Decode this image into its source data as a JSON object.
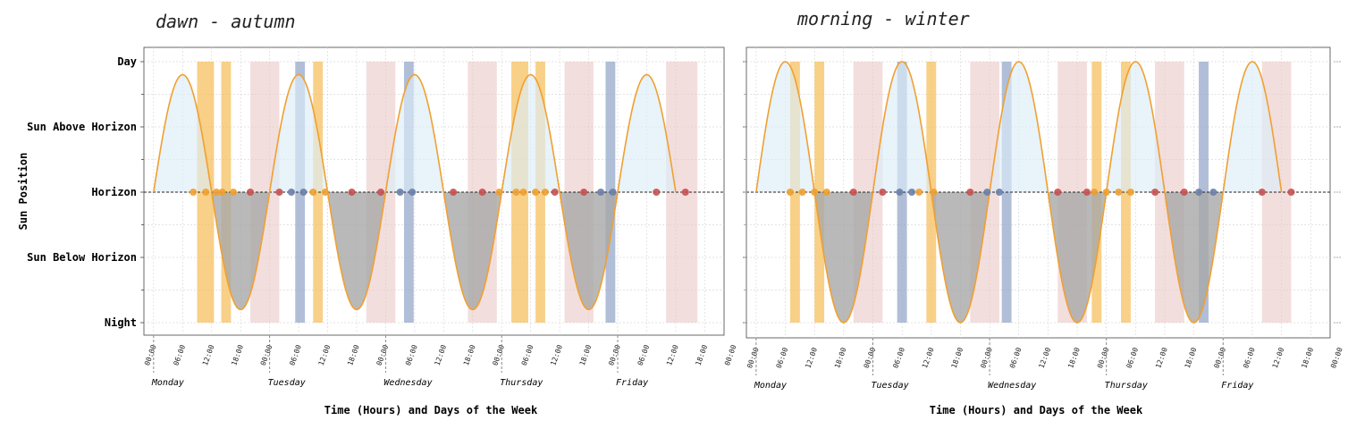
{
  "y_axis_title": "Sun Position",
  "x_axis_title": "Time (Hours) and Days of the Week",
  "colors": {
    "curve": "#f0a030",
    "above_fill": "#dcedf7",
    "below_fill": "#a8a8a8",
    "orange_band": "#f5c060",
    "pink_band": "#ebc8c8",
    "blue_band": "#8ea2c6",
    "orange_dot": "#f0a030",
    "red_dot": "#c85050",
    "blue_dot": "#6a7fa8"
  },
  "chart_data": [
    {
      "type": "line",
      "title": "dawn - autumn",
      "xlabel": "Time (Hours) and Days of the Week",
      "ylabel": "Sun Position",
      "y_levels": [
        "Night",
        "Sun Below Horizon",
        "Horizon",
        "Sun Above Horizon",
        "Day"
      ],
      "y_range": [
        -2,
        2
      ],
      "x_range_hours": [
        -2,
        118
      ],
      "x_ticks": [
        "00:00",
        "06:00",
        "12:00",
        "18:00",
        "00:00",
        "06:00",
        "12:00",
        "18:00",
        "00:00",
        "06:00",
        "12:00",
        "18:00",
        "00:00",
        "06:00",
        "12:00",
        "18:00",
        "00:00",
        "06:00",
        "12:00",
        "18:00",
        "00:00"
      ],
      "days": [
        "Monday",
        "Tuesday",
        "Wednesday",
        "Thursday",
        "Friday"
      ],
      "grid": true,
      "series": [
        {
          "kind": "sun-curve",
          "amplitude": 1.8,
          "period_hours": 24,
          "start_hour": 0,
          "end_hour": 108
        }
      ],
      "bands": [
        {
          "kind": "orange",
          "start": 9.0,
          "end": 12.5
        },
        {
          "kind": "orange",
          "start": 14.0,
          "end": 16.0
        },
        {
          "kind": "pink",
          "start": 20.0,
          "end": 26.0
        },
        {
          "kind": "blue",
          "start": 29.3,
          "end": 31.3
        },
        {
          "kind": "orange",
          "start": 33.0,
          "end": 35.0
        },
        {
          "kind": "pink",
          "start": 44.0,
          "end": 50.0
        },
        {
          "kind": "blue",
          "start": 51.8,
          "end": 53.8
        },
        {
          "kind": "pink",
          "start": 65.0,
          "end": 71.0
        },
        {
          "kind": "orange",
          "start": 74.0,
          "end": 77.5
        },
        {
          "kind": "orange",
          "start": 79.0,
          "end": 81.0
        },
        {
          "kind": "pink",
          "start": 85.0,
          "end": 91.0
        },
        {
          "kind": "blue",
          "start": 93.5,
          "end": 95.5
        },
        {
          "kind": "pink",
          "start": 106.0,
          "end": 112.5
        }
      ],
      "points": [
        {
          "kind": "orange",
          "x": 8.2
        },
        {
          "kind": "orange",
          "x": 10.8
        },
        {
          "kind": "orange",
          "x": 13.0
        },
        {
          "kind": "orange",
          "x": 14.2
        },
        {
          "kind": "orange",
          "x": 16.5
        },
        {
          "kind": "red",
          "x": 20.0
        },
        {
          "kind": "red",
          "x": 26.0
        },
        {
          "kind": "blue",
          "x": 28.5
        },
        {
          "kind": "blue",
          "x": 31.0
        },
        {
          "kind": "orange",
          "x": 33.0
        },
        {
          "kind": "orange",
          "x": 35.5
        },
        {
          "kind": "red",
          "x": 41.0
        },
        {
          "kind": "red",
          "x": 47.0
        },
        {
          "kind": "blue",
          "x": 51.0
        },
        {
          "kind": "blue",
          "x": 53.5
        },
        {
          "kind": "red",
          "x": 62.0
        },
        {
          "kind": "red",
          "x": 68.0
        },
        {
          "kind": "orange",
          "x": 71.5
        },
        {
          "kind": "orange",
          "x": 75.0
        },
        {
          "kind": "orange",
          "x": 76.5
        },
        {
          "kind": "orange",
          "x": 79.0
        },
        {
          "kind": "orange",
          "x": 81.0
        },
        {
          "kind": "red",
          "x": 83.0
        },
        {
          "kind": "red",
          "x": 89.0
        },
        {
          "kind": "blue",
          "x": 92.5
        },
        {
          "kind": "blue",
          "x": 95.0
        },
        {
          "kind": "red",
          "x": 104.0
        },
        {
          "kind": "red",
          "x": 110.0
        }
      ]
    },
    {
      "type": "line",
      "title": "morning - winter",
      "xlabel": "Time (Hours) and Days of the Week",
      "ylabel": "",
      "y_levels": [
        "Night",
        "Sun Below Horizon",
        "Horizon",
        "Sun Above Horizon",
        "Day"
      ],
      "y_range": [
        -2,
        2
      ],
      "x_range_hours": [
        -2,
        118
      ],
      "x_ticks": [
        "00:00",
        "06:00",
        "12:00",
        "18:00",
        "00:00",
        "06:00",
        "12:00",
        "18:00",
        "00:00",
        "06:00",
        "12:00",
        "18:00",
        "00:00",
        "06:00",
        "12:00",
        "18:00",
        "00:00",
        "06:00",
        "12:00",
        "18:00",
        "00:00"
      ],
      "days": [
        "Monday",
        "Tuesday",
        "Wednesday",
        "Thursday",
        "Friday"
      ],
      "grid": true,
      "series": [
        {
          "kind": "sun-curve",
          "amplitude": 2.0,
          "period_hours": 24,
          "start_hour": 0,
          "end_hour": 108
        }
      ],
      "bands": [
        {
          "kind": "orange",
          "start": 7.0,
          "end": 9.0
        },
        {
          "kind": "orange",
          "start": 12.0,
          "end": 14.0
        },
        {
          "kind": "pink",
          "start": 20.0,
          "end": 26.0
        },
        {
          "kind": "blue",
          "start": 29.0,
          "end": 31.0
        },
        {
          "kind": "orange",
          "start": 35.0,
          "end": 37.0
        },
        {
          "kind": "pink",
          "start": 44.0,
          "end": 50.0
        },
        {
          "kind": "blue",
          "start": 50.5,
          "end": 52.5
        },
        {
          "kind": "pink",
          "start": 62.0,
          "end": 68.0
        },
        {
          "kind": "orange",
          "start": 69.0,
          "end": 71.0
        },
        {
          "kind": "orange",
          "start": 75.0,
          "end": 77.0
        },
        {
          "kind": "pink",
          "start": 82.0,
          "end": 88.0
        },
        {
          "kind": "blue",
          "start": 91.0,
          "end": 93.0
        },
        {
          "kind": "pink",
          "start": 104.0,
          "end": 110.0
        }
      ],
      "points": [
        {
          "kind": "orange",
          "x": 7.0
        },
        {
          "kind": "orange",
          "x": 9.5
        },
        {
          "kind": "orange",
          "x": 12.0
        },
        {
          "kind": "orange",
          "x": 14.5
        },
        {
          "kind": "red",
          "x": 20.0
        },
        {
          "kind": "red",
          "x": 26.0
        },
        {
          "kind": "blue",
          "x": 29.5
        },
        {
          "kind": "blue",
          "x": 32.0
        },
        {
          "kind": "orange",
          "x": 33.5
        },
        {
          "kind": "orange",
          "x": 36.5
        },
        {
          "kind": "red",
          "x": 44.0
        },
        {
          "kind": "blue",
          "x": 47.5
        },
        {
          "kind": "blue",
          "x": 50.0
        },
        {
          "kind": "red",
          "x": 62.0
        },
        {
          "kind": "red",
          "x": 68.0
        },
        {
          "kind": "orange",
          "x": 69.5
        },
        {
          "kind": "orange",
          "x": 72.0
        },
        {
          "kind": "orange",
          "x": 74.5
        },
        {
          "kind": "orange",
          "x": 77.0
        },
        {
          "kind": "red",
          "x": 82.0
        },
        {
          "kind": "red",
          "x": 88.0
        },
        {
          "kind": "blue",
          "x": 91.0
        },
        {
          "kind": "blue",
          "x": 94.0
        },
        {
          "kind": "red",
          "x": 104.0
        },
        {
          "kind": "red",
          "x": 110.0
        }
      ]
    }
  ]
}
